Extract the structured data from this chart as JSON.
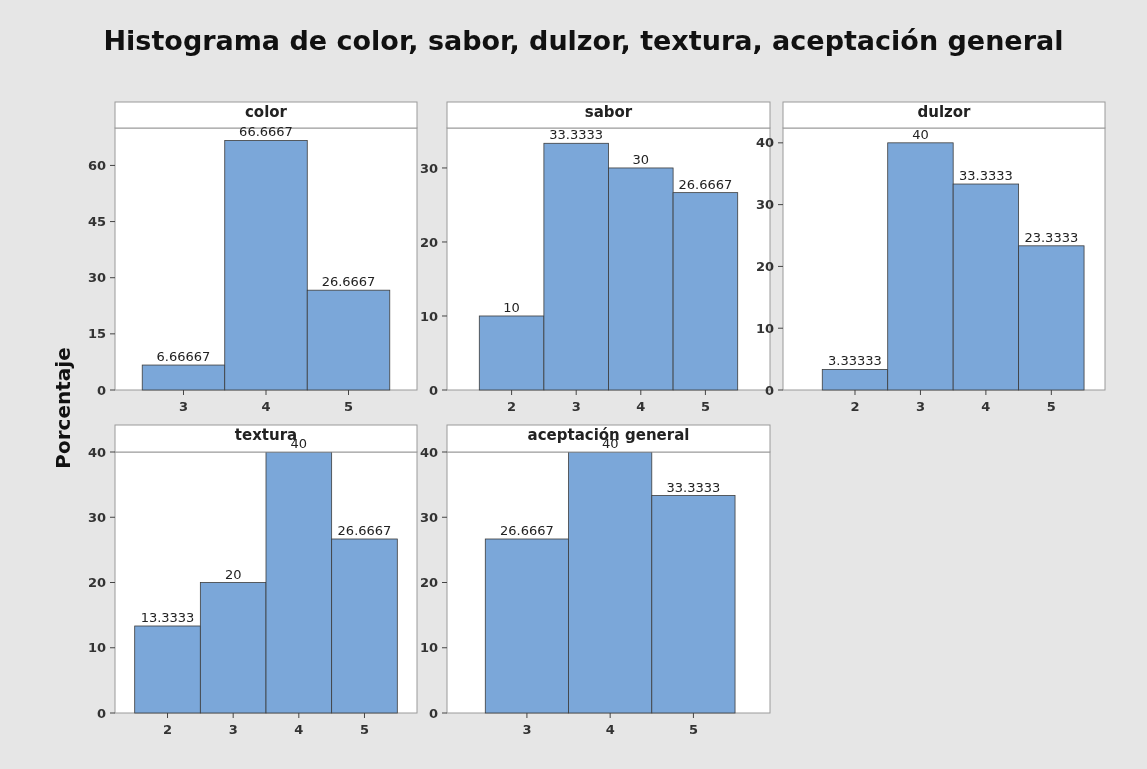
{
  "chart_data": [
    {
      "type": "histogram",
      "title": "Histograma de color, sabor, dulzor, textura, aceptación general",
      "subtitle": "color",
      "ylabel": "Porcentaje",
      "bins": [
        2.5,
        3.5,
        4.5,
        5.5
      ],
      "values": [
        6.66667,
        66.6667,
        26.6667
      ],
      "color": "#7ba7d9",
      "xlim": [
        2.17,
        5.83
      ],
      "xticks": [
        3,
        4,
        5
      ],
      "ylim": [
        0,
        70
      ],
      "yticks": [
        0,
        15,
        30,
        45,
        60
      ],
      "data_labels": true,
      "grid": false
    },
    {
      "type": "histogram",
      "subtitle": "sabor",
      "bins": [
        1.5,
        2.5,
        3.5,
        4.5,
        5.5
      ],
      "values": [
        10,
        33.3333,
        30,
        26.6667
      ],
      "color": "#7ba7d9",
      "xlim": [
        1,
        6
      ],
      "xticks": [
        2,
        3,
        4,
        5
      ],
      "ylim": [
        0,
        35.4
      ],
      "yticks": [
        0,
        10,
        20,
        30
      ],
      "data_labels": true,
      "grid": false
    },
    {
      "type": "histogram",
      "subtitle": "dulzor",
      "bins": [
        1.5,
        2.5,
        3.5,
        4.5,
        5.5
      ],
      "values": [
        3.33333,
        40,
        33.3333,
        23.3333
      ],
      "color": "#7ba7d9",
      "xlim": [
        0.9,
        5.82
      ],
      "xticks": [
        2,
        3,
        4,
        5
      ],
      "ylim": [
        0,
        42.4
      ],
      "yticks": [
        0,
        10,
        20,
        30,
        40
      ],
      "data_labels": true,
      "grid": false
    },
    {
      "type": "histogram",
      "subtitle": "textura",
      "bins": [
        1.5,
        2.5,
        3.5,
        4.5,
        5.5
      ],
      "values": [
        13.3333,
        20,
        40,
        26.6667
      ],
      "color": "#7ba7d9",
      "xlim": [
        1.2,
        5.8
      ],
      "xticks": [
        2,
        3,
        4,
        5
      ],
      "ylim": [
        0,
        40
      ],
      "yticks": [
        0,
        10,
        20,
        30,
        40
      ],
      "data_labels": true,
      "grid": false
    },
    {
      "type": "histogram",
      "subtitle": "aceptación general",
      "bins": [
        2.5,
        3.5,
        4.5,
        5.5
      ],
      "values": [
        26.6667,
        40,
        33.3333
      ],
      "color": "#7ba7d9",
      "xlim": [
        2.04,
        5.92
      ],
      "xticks": [
        3,
        4,
        5
      ],
      "ylim": [
        0,
        40
      ],
      "yticks": [
        0,
        10,
        20,
        30,
        40
      ],
      "data_labels": true,
      "grid": false
    }
  ]
}
